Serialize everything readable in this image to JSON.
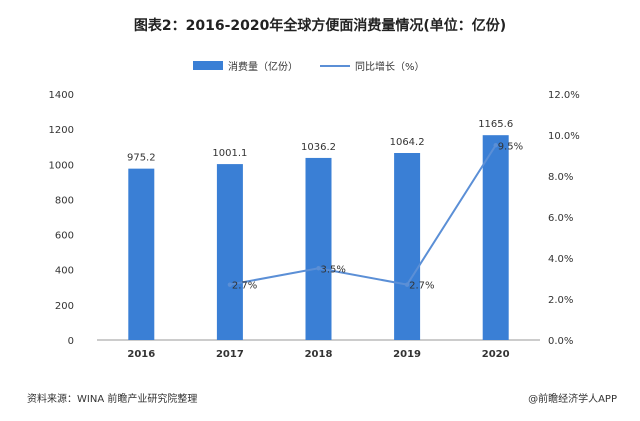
{
  "chart_data": {
    "type": "bar",
    "title": "图表2：2016-2020年全球方便面消费量情况(单位：亿份)",
    "categories": [
      "2016",
      "2017",
      "2018",
      "2019",
      "2020"
    ],
    "series": [
      {
        "name": "消费量（亿份）",
        "type": "bar",
        "axis": "left",
        "values": [
          975.2,
          1001.1,
          1036.2,
          1064.2,
          1165.6
        ],
        "labels": [
          "975.2",
          "1001.1",
          "1036.2",
          "1064.2",
          "1165.6"
        ],
        "color": "#3a7fd5"
      },
      {
        "name": "同比增长（%）",
        "type": "line",
        "axis": "right",
        "values": [
          null,
          2.7,
          3.5,
          2.7,
          9.5
        ],
        "labels": [
          "",
          "2.7%",
          "3.5%",
          "2.7%",
          "9.5%"
        ],
        "color": "#5b8fd6"
      }
    ],
    "y_left": {
      "range": [
        0,
        1400
      ],
      "ticks": [
        "0",
        "200",
        "400",
        "600",
        "800",
        "1000",
        "1200",
        "1400"
      ]
    },
    "y_right": {
      "range": [
        0,
        12
      ],
      "ticks": [
        "0.0%",
        "2.0%",
        "4.0%",
        "6.0%",
        "8.0%",
        "10.0%",
        "12.0%"
      ]
    },
    "legend_position": "top-center",
    "grid": false
  },
  "footer": {
    "source": "资料来源：WINA 前瞻产业研究院整理",
    "brand": "@前瞻经济学人APP"
  }
}
